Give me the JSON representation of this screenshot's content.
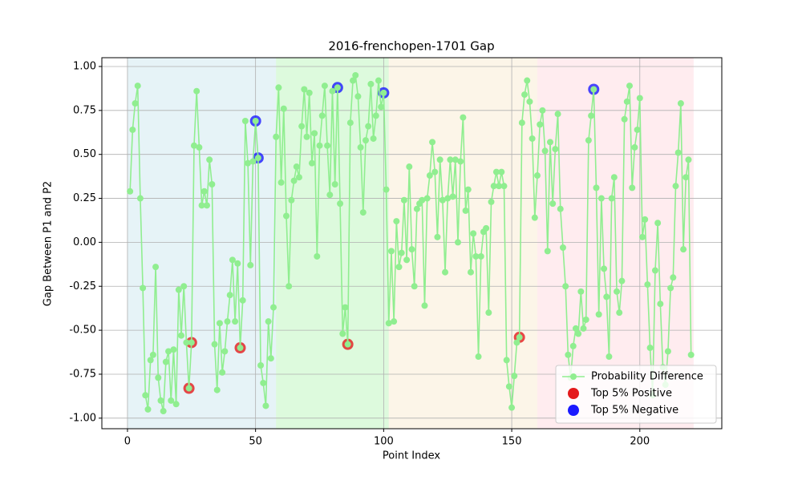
{
  "chart_data": {
    "type": "line",
    "title": "2016-frenchopen-1701 Gap",
    "x_label": "Point Index",
    "y_label": "Gap Between P1 and P2",
    "xlim": [
      -10,
      232
    ],
    "ylim": [
      -1.06,
      1.05
    ],
    "xticks": [
      0,
      50,
      100,
      150,
      200
    ],
    "yticks": [
      {
        "value": -1,
        "label": "-1.00"
      },
      -0.75,
      {
        "value": -0.5,
        "label": "-0.50"
      },
      -0.25,
      {
        "value": 0,
        "label": "0.00"
      },
      0.25,
      {
        "value": 0.5,
        "label": "0.50"
      },
      0.75,
      {
        "value": 1,
        "label": "1.00"
      }
    ],
    "grid": true,
    "legend_position": "lower right",
    "spans": [
      {
        "start": 0,
        "end": 58,
        "color": "#add8e6"
      },
      {
        "start": 58,
        "end": 102,
        "color": "#90ee90"
      },
      {
        "start": 102,
        "end": 160,
        "color": "#f5deb3"
      },
      {
        "start": 160,
        "end": 221,
        "color": "#ffc0cb"
      }
    ],
    "series": [
      {
        "name": "Probability Difference",
        "color": "#90ee90",
        "kind": "line",
        "x": [
          1,
          2,
          3,
          4,
          5,
          6,
          7,
          8,
          9,
          10,
          11,
          12,
          13,
          14,
          15,
          16,
          17,
          18,
          19,
          20,
          21,
          22,
          23,
          24,
          25,
          26,
          27,
          28,
          29,
          30,
          31,
          32,
          33,
          34,
          35,
          36,
          37,
          38,
          39,
          40,
          41,
          42,
          43,
          44,
          45,
          46,
          47,
          48,
          49,
          50,
          51,
          52,
          53,
          54,
          55,
          56,
          57,
          58,
          59,
          60,
          61,
          62,
          63,
          64,
          65,
          66,
          67,
          68,
          69,
          70,
          71,
          72,
          73,
          74,
          75,
          76,
          77,
          78,
          79,
          80,
          81,
          82,
          83,
          84,
          85,
          86,
          87,
          88,
          89,
          90,
          91,
          92,
          93,
          94,
          95,
          96,
          97,
          98,
          99,
          100,
          101,
          102,
          103,
          104,
          105,
          106,
          107,
          108,
          109,
          110,
          111,
          112,
          113,
          114,
          115,
          116,
          117,
          118,
          119,
          120,
          121,
          122,
          123,
          124,
          125,
          126,
          127,
          128,
          129,
          130,
          131,
          132,
          133,
          134,
          135,
          136,
          137,
          138,
          139,
          140,
          141,
          142,
          143,
          144,
          145,
          146,
          147,
          148,
          149,
          150,
          151,
          152,
          153,
          154,
          155,
          156,
          157,
          158,
          159,
          160,
          161,
          162,
          163,
          164,
          165,
          166,
          167,
          168,
          169,
          170,
          171,
          172,
          173,
          174,
          175,
          176,
          177,
          178,
          179,
          180,
          181,
          182,
          183,
          184,
          185,
          186,
          187,
          188,
          189,
          190,
          191,
          192,
          193,
          194,
          195,
          196,
          197,
          198,
          199,
          200,
          201,
          202,
          203,
          204,
          205,
          206,
          207,
          208,
          209,
          210,
          211,
          212,
          213,
          214,
          215,
          216,
          217,
          218,
          219,
          220
        ],
        "values": [
          0.29,
          0.64,
          0.79,
          0.89,
          0.25,
          -0.26,
          -0.87,
          -0.95,
          -0.67,
          -0.64,
          -0.14,
          -0.77,
          -0.9,
          -0.96,
          -0.68,
          -0.62,
          -0.9,
          -0.61,
          -0.92,
          -0.27,
          -0.53,
          -0.25,
          -0.57,
          -0.83,
          -0.57,
          0.55,
          0.86,
          0.54,
          0.21,
          0.29,
          0.21,
          0.47,
          0.33,
          -0.58,
          -0.84,
          -0.46,
          -0.74,
          -0.62,
          -0.45,
          -0.3,
          -0.1,
          -0.45,
          -0.12,
          -0.6,
          -0.33,
          0.69,
          0.45,
          -0.13,
          0.46,
          0.69,
          0.48,
          -0.7,
          -0.8,
          -0.93,
          -0.45,
          -0.66,
          -0.37,
          0.6,
          0.88,
          0.34,
          0.76,
          0.15,
          -0.25,
          0.24,
          0.35,
          0.43,
          0.37,
          0.66,
          0.87,
          0.6,
          0.85,
          0.45,
          0.62,
          -0.08,
          0.55,
          0.72,
          0.89,
          0.55,
          0.27,
          0.86,
          0.33,
          0.88,
          0.22,
          -0.52,
          -0.37,
          -0.58,
          0.68,
          0.92,
          0.95,
          0.83,
          0.54,
          0.17,
          0.58,
          0.66,
          0.9,
          0.59,
          0.72,
          0.92,
          0.77,
          0.85,
          0.3,
          -0.46,
          -0.05,
          -0.45,
          0.12,
          -0.14,
          -0.06,
          0.24,
          -0.1,
          0.43,
          -0.04,
          -0.25,
          0.19,
          0.22,
          0.24,
          -0.36,
          0.25,
          0.38,
          0.57,
          0.4,
          0.03,
          0.47,
          0.24,
          -0.17,
          0.25,
          0.47,
          0.26,
          0.47,
          0.0,
          0.46,
          0.71,
          0.18,
          0.3,
          -0.17,
          0.05,
          -0.08,
          -0.65,
          -0.08,
          0.06,
          0.08,
          -0.4,
          0.23,
          0.32,
          0.4,
          0.32,
          0.4,
          0.32,
          -0.67,
          -0.82,
          -0.94,
          -0.76,
          -0.57,
          -0.54,
          0.68,
          0.84,
          0.92,
          0.8,
          0.59,
          0.14,
          0.38,
          0.67,
          0.75,
          0.52,
          -0.05,
          0.57,
          0.22,
          0.53,
          0.73,
          0.19,
          -0.03,
          -0.25,
          -0.64,
          -0.77,
          -0.59,
          -0.49,
          -0.52,
          -0.28,
          -0.49,
          -0.44,
          0.58,
          0.72,
          0.87,
          0.31,
          -0.41,
          0.25,
          -0.15,
          -0.31,
          -0.65,
          0.25,
          0.37,
          -0.28,
          -0.4,
          -0.22,
          0.7,
          0.8,
          0.89,
          0.31,
          0.54,
          0.64,
          0.82,
          0.03,
          0.13,
          -0.24,
          -0.6,
          -0.87,
          -0.16,
          0.11,
          -0.35,
          -0.71,
          -0.81,
          -0.62,
          -0.26,
          -0.2,
          0.32,
          0.51,
          0.79,
          -0.04,
          0.37,
          0.47,
          -0.64
        ]
      },
      {
        "name": "Top 5% Positive",
        "color": "#e41a1c",
        "kind": "scatter",
        "x": [
          24,
          25,
          44,
          86,
          153
        ],
        "values": [
          -0.83,
          -0.57,
          -0.6,
          -0.58,
          -0.54
        ]
      },
      {
        "name": "Top 5% Negative",
        "color": "#1a1aff",
        "kind": "scatter",
        "x": [
          50,
          51,
          82,
          100,
          182
        ],
        "values": [
          0.69,
          0.48,
          0.88,
          0.85,
          0.87
        ]
      }
    ]
  }
}
